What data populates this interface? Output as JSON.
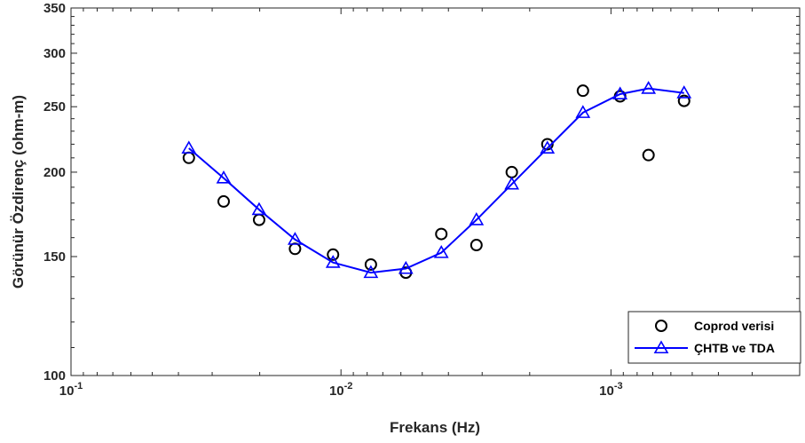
{
  "chart_data": {
    "type": "line",
    "title": "",
    "xlabel": "Frekans (Hz)",
    "ylabel": "Görünür Özdirenç (ohm-m)",
    "x_scale": "log",
    "x_reversed": true,
    "y_scale": "log",
    "xlim": [
      0.1,
      0.0002
    ],
    "ylim": [
      100,
      350
    ],
    "x_ticks": [
      {
        "value": 0.1,
        "base": "10",
        "exp": "-1"
      },
      {
        "value": 0.01,
        "base": "10",
        "exp": "-2"
      },
      {
        "value": 0.001,
        "base": "10",
        "exp": "-3"
      }
    ],
    "y_ticks": [
      100,
      150,
      200,
      250,
      300,
      350
    ],
    "grid": false,
    "legend_position": "bottom-right",
    "series": [
      {
        "name": "Coprod verisi",
        "style": "markers",
        "marker": "circle",
        "color": "#000000",
        "x": [
          0.0366,
          0.0272,
          0.0201,
          0.0148,
          0.0107,
          0.00775,
          0.00575,
          0.00425,
          0.00315,
          0.00233,
          0.00172,
          0.00127,
          0.000925,
          0.000726,
          0.000536
        ],
        "y": [
          210,
          181,
          170,
          154,
          151,
          146,
          142,
          162,
          156,
          200,
          220,
          264,
          259,
          212,
          255
        ]
      },
      {
        "name": "ÇHTB ve TDA",
        "style": "line-markers",
        "marker": "triangle",
        "color": "#0000ff",
        "x": [
          0.0366,
          0.0272,
          0.0201,
          0.0148,
          0.0107,
          0.00775,
          0.00575,
          0.00425,
          0.00315,
          0.00233,
          0.00172,
          0.00127,
          0.000925,
          0.000726,
          0.000536
        ],
        "y": [
          217,
          196,
          176,
          159,
          147,
          142,
          144,
          152,
          170,
          192,
          217,
          245,
          261,
          266,
          262
        ]
      }
    ]
  }
}
